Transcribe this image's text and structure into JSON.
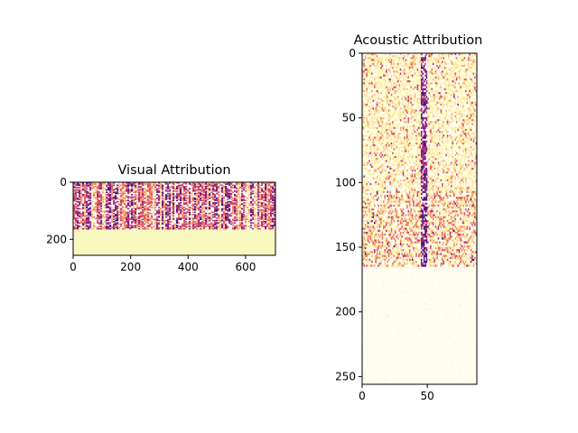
{
  "chart_data": [
    {
      "type": "heatmap",
      "title": "Visual Attribution",
      "xlabel": "",
      "ylabel": "",
      "xlim": [
        0,
        704
      ],
      "ylim": [
        256,
        0
      ],
      "xticks": [
        "0",
        "200",
        "400",
        "600"
      ],
      "yticks": [
        "0",
        "200"
      ],
      "colormap": "magma-like",
      "data_rows_end": 165,
      "padding_fill": "#f9f9bf"
    },
    {
      "type": "heatmap",
      "title": "Acoustic Attribution",
      "xlabel": "",
      "ylabel": "",
      "xlim": [
        0,
        88
      ],
      "ylim": [
        256,
        0
      ],
      "xticks": [
        "0",
        "50"
      ],
      "yticks": [
        "0",
        "50",
        "100",
        "150",
        "200",
        "250"
      ],
      "colormap": "magma-like",
      "data_rows_end": 165,
      "padding_fill": "#fffdf0"
    }
  ]
}
